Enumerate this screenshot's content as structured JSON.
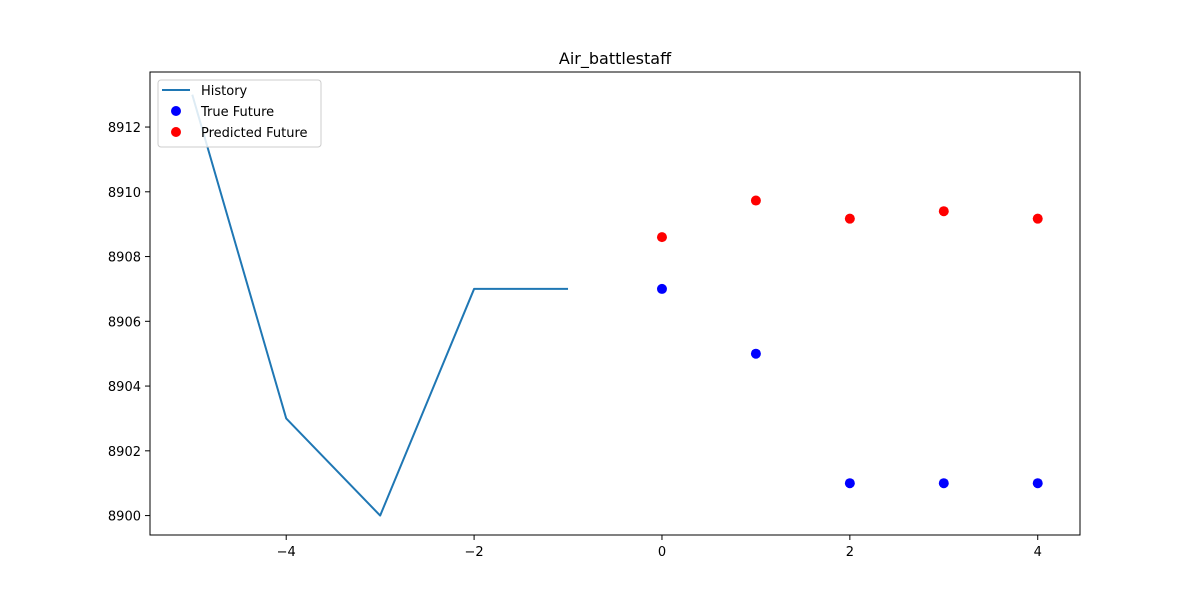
{
  "chart_data": {
    "type": "line",
    "title": "Air_battlestaff",
    "xlabel": "",
    "ylabel": "",
    "xlim": [
      -5.45,
      4.45
    ],
    "ylim": [
      8899.4,
      8913.7
    ],
    "x_ticks": [
      -4,
      -2,
      0,
      2,
      4
    ],
    "x_tick_labels": [
      "−4",
      "−2",
      "0",
      "2",
      "4"
    ],
    "y_ticks": [
      8900,
      8902,
      8904,
      8906,
      8908,
      8910,
      8912
    ],
    "y_tick_labels": [
      "8900",
      "8902",
      "8904",
      "8906",
      "8908",
      "8910",
      "8912"
    ],
    "grid": false,
    "legend_position": "upper-left",
    "series": [
      {
        "name": "History",
        "kind": "line",
        "color": "#1f77b4",
        "x": [
          -5,
          -4,
          -3,
          -2,
          -1
        ],
        "y": [
          8913,
          8903,
          8900,
          8907,
          8907
        ]
      },
      {
        "name": "True Future",
        "kind": "scatter",
        "color": "#0000ff",
        "x": [
          0,
          1,
          2,
          3,
          4
        ],
        "y": [
          8907,
          8905,
          8901,
          8901,
          8901
        ]
      },
      {
        "name": "Predicted Future",
        "kind": "scatter",
        "color": "#ff0000",
        "x": [
          0,
          1,
          2,
          3,
          4
        ],
        "y": [
          8908.6,
          8909.73,
          8909.17,
          8909.4,
          8909.17
        ]
      }
    ]
  }
}
